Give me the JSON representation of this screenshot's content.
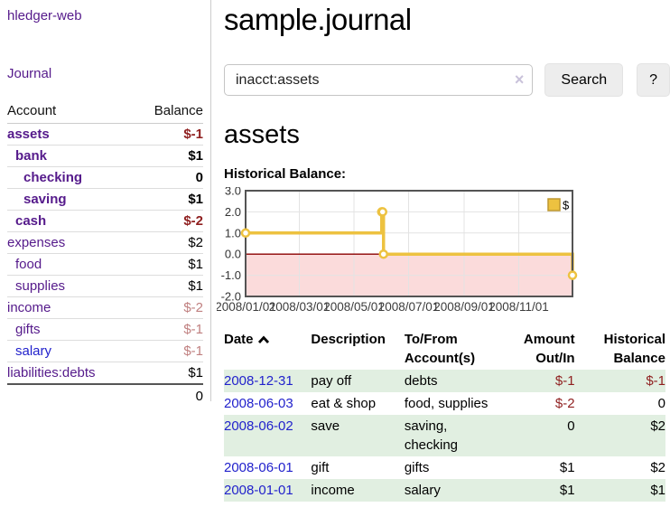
{
  "colors": {
    "link_purple": "#551a8b",
    "link_blue": "#2222cc",
    "negative_strong": "#8f1f1f",
    "negative_soft": "#c08080",
    "row_stripe_green": "#e1efe1",
    "sidebar_divider": "#cccccc"
  },
  "sidebar": {
    "brand": "hledger-web",
    "nav": {
      "journal": "Journal"
    },
    "accounts_table": {
      "headers": [
        "Account",
        "Balance"
      ],
      "rows": [
        {
          "name": "assets",
          "depth": 0,
          "bold": true,
          "balance": "$-1",
          "neg": true
        },
        {
          "name": "bank",
          "depth": 1,
          "bold": true,
          "balance": "$1",
          "neg": false
        },
        {
          "name": "checking",
          "depth": 2,
          "bold": true,
          "balance": "0",
          "neg": false
        },
        {
          "name": "saving",
          "depth": 2,
          "bold": true,
          "balance": "$1",
          "neg": false
        },
        {
          "name": "cash",
          "depth": 1,
          "bold": true,
          "balance": "$-2",
          "neg": true
        },
        {
          "name": "expenses",
          "depth": 0,
          "bold": false,
          "balance": "$2",
          "neg": false
        },
        {
          "name": "food",
          "depth": 1,
          "bold": false,
          "balance": "$1",
          "neg": false
        },
        {
          "name": "supplies",
          "depth": 1,
          "bold": false,
          "balance": "$1",
          "neg": false
        },
        {
          "name": "income",
          "depth": 0,
          "bold": false,
          "balance": "$-2",
          "neg": true
        },
        {
          "name": "gifts",
          "depth": 1,
          "bold": false,
          "balance": "$-1",
          "neg": true
        },
        {
          "name": "salary",
          "depth": 1,
          "bold": false,
          "balance": "$-1",
          "neg": true,
          "blue": true
        },
        {
          "name": "liabilities:debts",
          "depth": 0,
          "bold": false,
          "balance": "$1",
          "neg": false
        }
      ],
      "total": "0"
    }
  },
  "header": {
    "title": "sample.journal"
  },
  "search": {
    "value": "inacct:assets",
    "clear_icon": "×",
    "button_label": "Search",
    "help_button_label": "?"
  },
  "account_page": {
    "heading": "assets",
    "chart_label": "Historical Balance:"
  },
  "chart_data": {
    "type": "line",
    "step": true,
    "title": "Historical Balance",
    "series": [
      {
        "name": "$",
        "color": "#edc240",
        "points": [
          [
            "2008-01-01",
            1
          ],
          [
            "2008-06-01",
            2
          ],
          [
            "2008-06-02",
            2
          ],
          [
            "2008-06-03",
            0
          ],
          [
            "2008-12-31",
            -1
          ]
        ]
      }
    ],
    "xrange": [
      "2008-01-01",
      "2008-12-31"
    ],
    "ylim": [
      -2,
      3
    ],
    "yticks": [
      "3.0",
      "2.0",
      "1.0",
      "0.0",
      "-1.0",
      "-2.0"
    ],
    "xticks": [
      {
        "x": "2008-01-01",
        "label": "2008/01/01"
      },
      {
        "x": "2008-03-01",
        "label": "2008/03/01"
      },
      {
        "x": "2008-05-01",
        "label": "2008/05/01"
      },
      {
        "x": "2008-07-01",
        "label": "2008/07/01"
      },
      {
        "x": "2008-09-01",
        "label": "2008/09/01"
      },
      {
        "x": "2008-11-01",
        "label": "2008/11/01"
      }
    ],
    "legend": {
      "label": "$",
      "position": "top-right"
    },
    "grid": true,
    "negative_region_color": "#fbdbdb",
    "zero_line_color": "#8b0000",
    "grid_color": "#e3e3e3",
    "border_color": "#545454",
    "marker_fill": "#ffffff",
    "legend_square_border": "#bd9730"
  },
  "register_table": {
    "headers": {
      "date": "Date",
      "sort_icon": "chevron-up",
      "description": "Description",
      "accounts": "To/From Account(s)",
      "amount": "Amount Out/In",
      "balance": "Historical Balance"
    },
    "rows": [
      {
        "date": "2008-12-31",
        "description": "pay off",
        "accounts": "debts",
        "amount": "$-1",
        "amount_neg": true,
        "balance": "$-1",
        "balance_neg": true
      },
      {
        "date": "2008-06-03",
        "description": "eat & shop",
        "accounts": "food, supplies",
        "amount": "$-2",
        "amount_neg": true,
        "balance": "0",
        "balance_neg": false
      },
      {
        "date": "2008-06-02",
        "description": "save",
        "accounts": "saving, checking",
        "amount": "0",
        "amount_neg": false,
        "balance": "$2",
        "balance_neg": false
      },
      {
        "date": "2008-06-01",
        "description": "gift",
        "accounts": "gifts",
        "amount": "$1",
        "amount_neg": false,
        "balance": "$2",
        "balance_neg": false
      },
      {
        "date": "2008-01-01",
        "description": "income",
        "accounts": "salary",
        "amount": "$1",
        "amount_neg": false,
        "balance": "$1",
        "balance_neg": false
      }
    ]
  }
}
